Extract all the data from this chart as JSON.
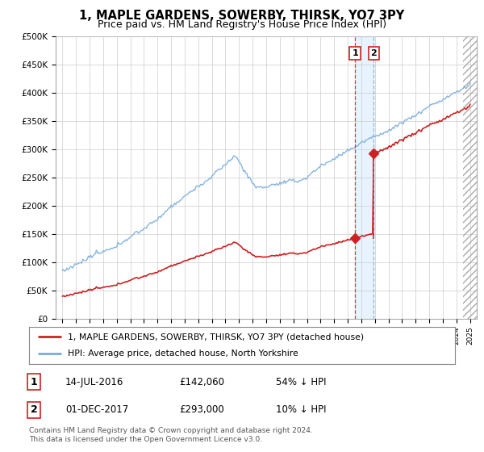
{
  "title": "1, MAPLE GARDENS, SOWERBY, THIRSK, YO7 3PY",
  "subtitle": "Price paid vs. HM Land Registry's House Price Index (HPI)",
  "title_fontsize": 10.5,
  "subtitle_fontsize": 9,
  "ylim": [
    0,
    500000
  ],
  "yticks": [
    0,
    50000,
    100000,
    150000,
    200000,
    250000,
    300000,
    350000,
    400000,
    450000,
    500000
  ],
  "ytick_labels": [
    "£0",
    "£50K",
    "£100K",
    "£150K",
    "£200K",
    "£250K",
    "£300K",
    "£350K",
    "£400K",
    "£450K",
    "£500K"
  ],
  "hpi_color": "#7aaddc",
  "price_color": "#cc2222",
  "transaction1_date": 2016.54,
  "transaction1_price": 142060,
  "transaction2_date": 2017.92,
  "transaction2_price": 293000,
  "legend_house_label": "1, MAPLE GARDENS, SOWERBY, THIRSK, YO7 3PY (detached house)",
  "legend_hpi_label": "HPI: Average price, detached house, North Yorkshire",
  "table_row1": [
    "1",
    "14-JUL-2016",
    "£142,060",
    "54% ↓ HPI"
  ],
  "table_row2": [
    "2",
    "01-DEC-2017",
    "£293,000",
    "10% ↓ HPI"
  ],
  "footnote": "Contains HM Land Registry data © Crown copyright and database right 2024.\nThis data is licensed under the Open Government Licence v3.0.",
  "background_color": "#ffffff",
  "grid_color": "#cccccc",
  "xlim_start": 1994.5,
  "xlim_end": 2025.5
}
